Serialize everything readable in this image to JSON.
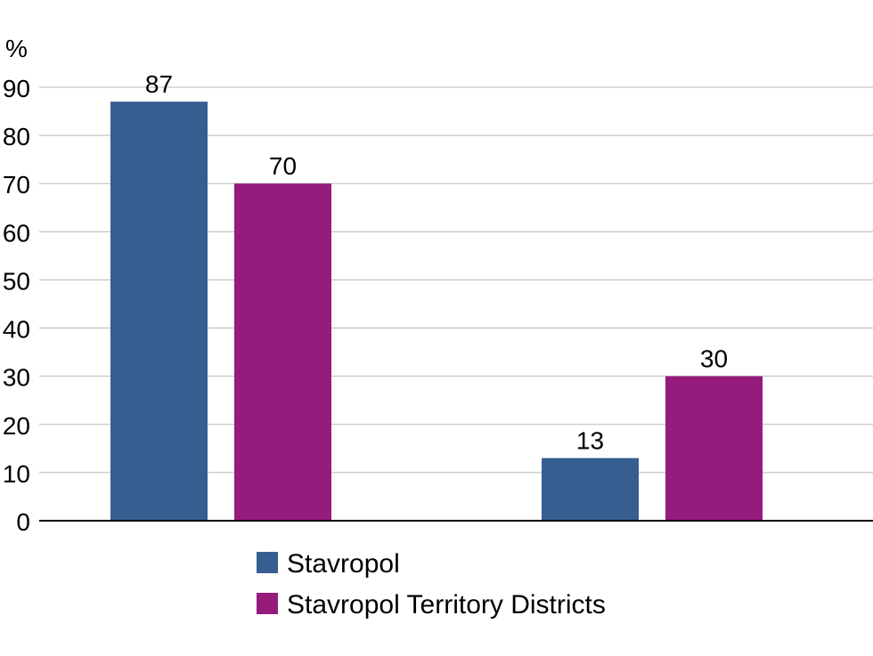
{
  "chart_data": {
    "type": "bar",
    "title": "",
    "ylabel": "%",
    "xlabel": "",
    "ylim": [
      0,
      90
    ],
    "yticks": [
      0,
      10,
      20,
      30,
      40,
      50,
      60,
      70,
      80,
      90
    ],
    "grid": true,
    "categories": [
      "",
      ""
    ],
    "series": [
      {
        "name": "Stavropol",
        "color": "#365e91",
        "values": [
          87,
          13
        ]
      },
      {
        "name": "Stavropol Territory Districts",
        "color": "#951b7c",
        "values": [
          70,
          30
        ]
      }
    ],
    "legend_position": "bottom"
  }
}
